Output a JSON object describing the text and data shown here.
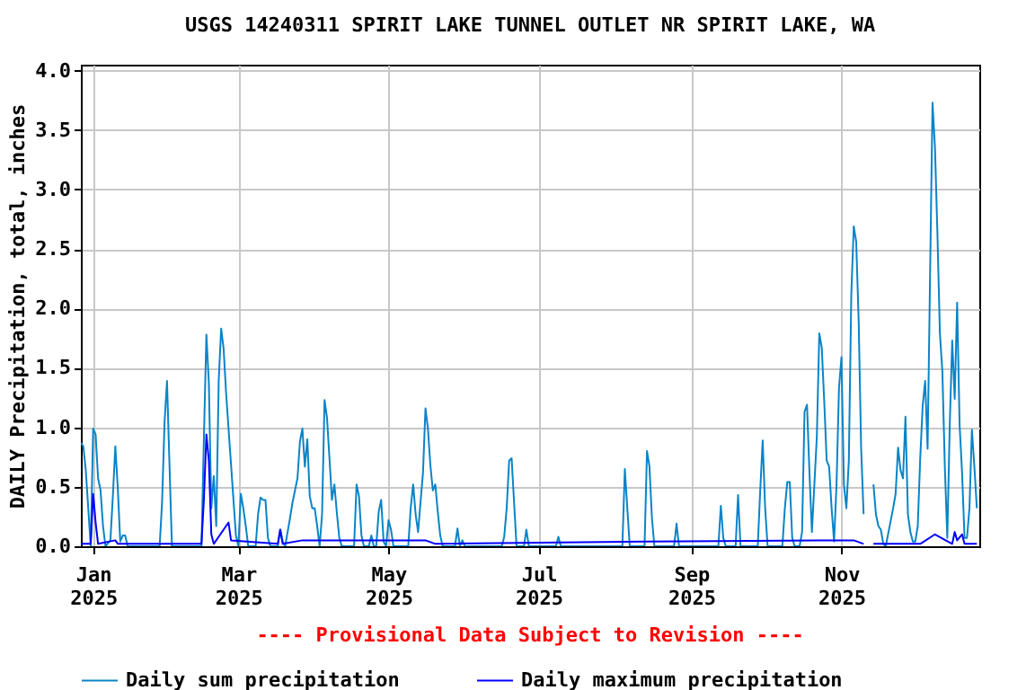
{
  "chart_data": {
    "type": "line",
    "title": "USGS 14240311 SPIRIT LAKE TUNNEL OUTLET NR SPIRIT LAKE, WA",
    "ylabel": "DAILY Precipitation, total, inches",
    "annotations": [
      "---- Provisional Data Subject to Revision ----"
    ],
    "xlim": [
      "2024-12-27",
      "2025-12-27"
    ],
    "xticks": [
      {
        "value": "2025-01-01",
        "label": "Jan 2025"
      },
      {
        "value": "2025-03-01",
        "label": "Mar 2025"
      },
      {
        "value": "2025-05-01",
        "label": "May 2025"
      },
      {
        "value": "2025-07-01",
        "label": "Jul 2025"
      },
      {
        "value": "2025-09-01",
        "label": "Sep 2025"
      },
      {
        "value": "2025-11-01",
        "label": "Nov 2025"
      }
    ],
    "ylim": [
      0,
      4.05
    ],
    "yticks": [
      {
        "value": 0,
        "label": "0.0"
      },
      {
        "value": 0.5,
        "label": "0.5"
      },
      {
        "value": 1,
        "label": "1.0"
      },
      {
        "value": 1.5,
        "label": "1.5"
      },
      {
        "value": 2,
        "label": "2.0"
      },
      {
        "value": 2.5,
        "label": "2.5"
      },
      {
        "value": 3,
        "label": "3.0"
      },
      {
        "value": 3.5,
        "label": "3.5"
      },
      {
        "value": 4,
        "label": "4.0"
      }
    ],
    "grid": true,
    "legend": "bottom",
    "marker": "none",
    "line_style": "solid",
    "series": [
      {
        "name": "Daily sum precipitation",
        "color": "#0a84c8",
        "x": [
          "2024-12-27",
          "2024-12-28",
          "2024-12-29",
          "2024-12-30",
          "2024-12-31",
          "2025-01-01",
          "2025-01-02",
          "2025-01-03",
          "2025-01-04",
          "2025-01-05",
          "2025-01-06",
          "2025-01-08",
          "2025-01-09",
          "2025-01-10",
          "2025-01-11",
          "2025-01-12",
          "2025-01-13",
          "2025-01-14",
          "2025-01-15",
          "2025-01-28",
          "2025-01-29",
          "2025-01-30",
          "2025-01-31",
          "2025-02-01",
          "2025-02-02",
          "2025-02-14",
          "2025-02-15",
          "2025-02-16",
          "2025-02-17",
          "2025-02-18",
          "2025-02-19",
          "2025-02-20",
          "2025-02-21",
          "2025-02-22",
          "2025-02-23",
          "2025-02-24",
          "2025-02-25",
          "2025-02-26",
          "2025-02-27",
          "2025-02-28",
          "2025-03-01",
          "2025-03-02",
          "2025-03-03",
          "2025-03-04",
          "2025-03-05",
          "2025-03-08",
          "2025-03-09",
          "2025-03-10",
          "2025-03-11",
          "2025-03-12",
          "2025-03-13",
          "2025-03-14",
          "2025-03-17",
          "2025-03-18",
          "2025-03-19",
          "2025-03-20",
          "2025-03-22",
          "2025-03-23",
          "2025-03-25",
          "2025-03-26",
          "2025-03-27",
          "2025-03-28",
          "2025-03-29",
          "2025-03-30",
          "2025-03-31",
          "2025-04-01",
          "2025-04-02",
          "2025-04-03",
          "2025-04-04",
          "2025-04-05",
          "2025-04-06",
          "2025-04-07",
          "2025-04-08",
          "2025-04-09",
          "2025-04-10",
          "2025-04-11",
          "2025-04-12",
          "2025-04-17",
          "2025-04-18",
          "2025-04-19",
          "2025-04-20",
          "2025-04-21",
          "2025-04-23",
          "2025-04-24",
          "2025-04-25",
          "2025-04-26",
          "2025-04-27",
          "2025-04-28",
          "2025-04-29",
          "2025-04-30",
          "2025-05-01",
          "2025-05-02",
          "2025-05-03",
          "2025-05-09",
          "2025-05-10",
          "2025-05-11",
          "2025-05-12",
          "2025-05-13",
          "2025-05-15",
          "2025-05-16",
          "2025-05-17",
          "2025-05-18",
          "2025-05-19",
          "2025-05-20",
          "2025-05-21",
          "2025-05-22",
          "2025-05-23",
          "2025-05-28",
          "2025-05-29",
          "2025-05-30",
          "2025-05-31",
          "2025-06-01",
          "2025-06-16",
          "2025-06-17",
          "2025-06-18",
          "2025-06-19",
          "2025-06-20",
          "2025-06-21",
          "2025-06-22",
          "2025-06-25",
          "2025-06-26",
          "2025-06-27",
          "2025-07-08",
          "2025-07-09",
          "2025-07-10",
          "2025-08-04",
          "2025-08-05",
          "2025-08-06",
          "2025-08-07",
          "2025-08-13",
          "2025-08-14",
          "2025-08-15",
          "2025-08-16",
          "2025-08-17",
          "2025-08-25",
          "2025-08-26",
          "2025-08-27",
          "2025-09-12",
          "2025-09-13",
          "2025-09-14",
          "2025-09-15",
          "2025-09-19",
          "2025-09-20",
          "2025-09-21",
          "2025-09-28",
          "2025-09-29",
          "2025-09-30",
          "2025-10-01",
          "2025-10-02",
          "2025-10-08",
          "2025-10-09",
          "2025-10-10",
          "2025-10-11",
          "2025-10-12",
          "2025-10-13",
          "2025-10-15",
          "2025-10-16",
          "2025-10-17",
          "2025-10-18",
          "2025-10-19",
          "2025-10-20",
          "2025-10-22",
          "2025-10-23",
          "2025-10-24",
          "2025-10-25",
          "2025-10-26",
          "2025-10-27",
          "2025-10-28",
          "2025-10-29",
          "2025-10-30",
          "2025-10-31",
          "2025-11-01",
          "2025-11-02",
          "2025-11-03",
          "2025-11-04",
          "2025-11-05",
          "2025-11-06",
          "2025-11-07",
          "2025-11-08",
          "2025-11-09",
          "2025-11-10",
          "2025-11-11",
          "2025-11-14",
          "2025-11-15",
          "2025-11-16",
          "2025-11-17",
          "2025-11-18",
          "2025-11-19",
          "2025-11-22",
          "2025-11-23",
          "2025-11-24",
          "2025-11-25",
          "2025-11-26",
          "2025-11-27",
          "2025-11-28",
          "2025-11-29",
          "2025-11-30",
          "2025-12-01",
          "2025-12-02",
          "2025-12-03",
          "2025-12-04",
          "2025-12-05",
          "2025-12-06",
          "2025-12-07",
          "2025-12-08",
          "2025-12-09",
          "2025-12-10",
          "2025-12-11",
          "2025-12-12",
          "2025-12-13",
          "2025-12-14",
          "2025-12-15",
          "2025-12-16",
          "2025-12-17",
          "2025-12-18",
          "2025-12-19",
          "2025-12-20",
          "2025-12-21",
          "2025-12-22",
          "2025-12-23",
          "2025-12-24",
          "2025-12-25",
          "2025-12-26"
        ],
        "values": [
          0.87,
          0.84,
          0.64,
          0.32,
          0,
          0.99,
          0.94,
          0.57,
          0.47,
          0.17,
          0,
          0.05,
          0.42,
          0.84,
          0.49,
          0.04,
          0.09,
          0.09,
          0,
          0,
          0.37,
          1.04,
          1.39,
          0.69,
          0,
          0,
          0.92,
          1.78,
          1.37,
          0.32,
          0.59,
          0.17,
          1.39,
          1.83,
          1.66,
          1.29,
          0.99,
          0.69,
          0.39,
          0.09,
          0,
          0.44,
          0.32,
          0.17,
          0,
          0,
          0.27,
          0.41,
          0.39,
          0.39,
          0.07,
          0,
          0,
          0.14,
          0.04,
          0,
          0.24,
          0.37,
          0.57,
          0.88,
          0.99,
          0.67,
          0.9,
          0.42,
          0.32,
          0.32,
          0.17,
          0,
          0.27,
          1.23,
          1.08,
          0.74,
          0.39,
          0.52,
          0.28,
          0.07,
          0,
          0,
          0.52,
          0.42,
          0.09,
          0,
          0,
          0.09,
          0,
          0,
          0.29,
          0.39,
          0.04,
          0,
          0.22,
          0.14,
          0,
          0,
          0.32,
          0.52,
          0.27,
          0.12,
          0.62,
          1.16,
          0.99,
          0.68,
          0.47,
          0.52,
          0.29,
          0.09,
          0,
          0,
          0.15,
          0,
          0.05,
          0,
          0,
          0.08,
          0.32,
          0.72,
          0.74,
          0.37,
          0,
          0,
          0.14,
          0,
          0,
          0.08,
          0,
          0,
          0.65,
          0.32,
          0,
          0,
          0.8,
          0.67,
          0.24,
          0,
          0,
          0.19,
          0,
          0,
          0.34,
          0.07,
          0,
          0,
          0.43,
          0,
          0,
          0.47,
          0.89,
          0.32,
          0,
          0,
          0.32,
          0.54,
          0.54,
          0.07,
          0,
          0,
          0.12,
          1.13,
          1.19,
          0.62,
          0.12,
          0.92,
          1.79,
          1.67,
          1.22,
          0.72,
          0.67,
          0.32,
          0.04,
          0.52,
          1.33,
          1.59,
          0.52,
          0.32,
          0.72,
          2.12,
          2.69,
          2.56,
          1.89,
          0.82,
          0.27,
          null,
          0.52,
          0.27,
          0.17,
          0.14,
          0.02,
          0,
          0.32,
          0.44,
          0.83,
          0.64,
          0.57,
          1.09,
          0.27,
          0.12,
          0.04,
          0.04,
          0.17,
          0.74,
          1.18,
          1.39,
          0.82,
          2.27,
          3.73,
          3.35,
          2.62,
          1.79,
          1.47,
          0.67,
          0.07,
          1.02,
          1.73,
          1.24,
          2.05,
          1.02,
          0.62,
          0.07,
          0.07,
          0.32,
          0.98,
          0.67,
          0.32
        ]
      },
      {
        "name": "Daily maximum precipitation",
        "color": "#0000ff",
        "x": [
          "2024-12-27",
          "2024-12-31",
          "2025-01-01",
          "2025-01-02",
          "2025-01-03",
          "2025-01-10",
          "2025-01-11",
          "2025-02-14",
          "2025-02-15",
          "2025-02-16",
          "2025-02-17",
          "2025-02-18",
          "2025-02-19",
          "2025-02-25",
          "2025-02-26",
          "2025-03-17",
          "2025-03-18",
          "2025-03-19",
          "2025-03-27",
          "2025-04-06",
          "2025-05-16",
          "2025-05-20",
          "2025-08-14",
          "2025-10-23",
          "2025-11-06",
          "2025-11-10",
          "2025-11-11",
          "2025-11-14",
          "2025-12-03",
          "2025-12-09",
          "2025-12-16",
          "2025-12-17",
          "2025-12-18",
          "2025-12-20",
          "2025-12-21",
          "2025-12-26"
        ],
        "values": [
          0.02,
          0.02,
          0.44,
          0.2,
          0.02,
          0.05,
          0.02,
          0.02,
          0.4,
          0.94,
          0.72,
          0.1,
          0.02,
          0.2,
          0.05,
          0.02,
          0.14,
          0.02,
          0.05,
          0.05,
          0.05,
          0.02,
          0.04,
          0.05,
          0.05,
          0.02,
          null,
          0.02,
          0.02,
          0.1,
          0.02,
          0.12,
          0.05,
          0.1,
          0.02,
          0.02
        ]
      }
    ]
  }
}
